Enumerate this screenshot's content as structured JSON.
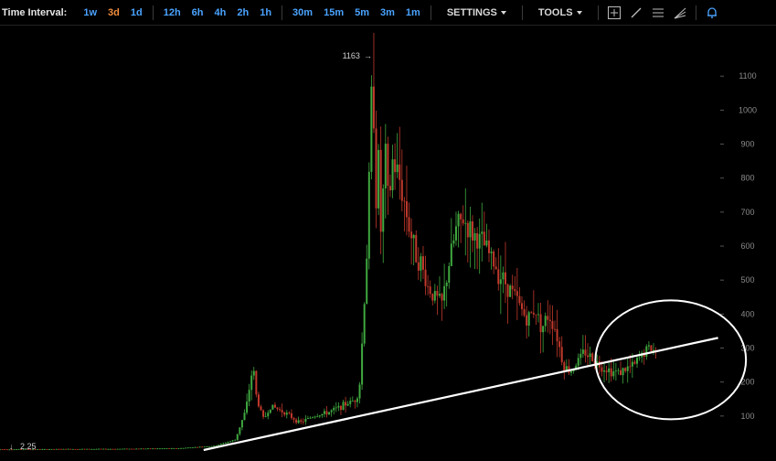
{
  "toolbar": {
    "label": "Time Interval:",
    "intervals": [
      {
        "label": "1w",
        "active": false
      },
      {
        "label": "3d",
        "active": true
      },
      {
        "label": "1d",
        "active": false
      },
      {
        "label": "12h",
        "active": false
      },
      {
        "label": "6h",
        "active": false
      },
      {
        "label": "4h",
        "active": false
      },
      {
        "label": "2h",
        "active": false
      },
      {
        "label": "1h",
        "active": false
      },
      {
        "label": "30m",
        "active": false
      },
      {
        "label": "15m",
        "active": false
      },
      {
        "label": "5m",
        "active": false
      },
      {
        "label": "3m",
        "active": false
      },
      {
        "label": "1m",
        "active": false
      }
    ],
    "settings_label": "SETTINGS",
    "tools_label": "TOOLS",
    "tool_icons": [
      "crosshair-icon",
      "trendline-icon",
      "horizontal-lines-icon",
      "fan-icon",
      "bell-icon"
    ]
  },
  "colors": {
    "interval_link": "#4aa3ff",
    "interval_active": "#f08c3c",
    "candle_up": "#3fa83f",
    "candle_down": "#c0392b",
    "annotation": "#ffffff"
  },
  "chart_data": {
    "type": "candlestick",
    "y_ticks": [
      100,
      200,
      300,
      400,
      500,
      600,
      700,
      800,
      900,
      1000,
      1100
    ],
    "ylim": [
      0,
      1200
    ],
    "high_marker": "1163",
    "low_marker": "2.25",
    "price_series": [
      [
        0,
        2
      ],
      [
        0.05,
        2
      ],
      [
        0.1,
        3
      ],
      [
        0.15,
        3
      ],
      [
        0.2,
        4
      ],
      [
        0.25,
        5
      ],
      [
        0.3,
        12
      ],
      [
        0.33,
        30
      ],
      [
        0.345,
        120
      ],
      [
        0.355,
        250
      ],
      [
        0.36,
        150
      ],
      [
        0.37,
        90
      ],
      [
        0.38,
        130
      ],
      [
        0.4,
        110
      ],
      [
        0.42,
        80
      ],
      [
        0.44,
        100
      ],
      [
        0.46,
        110
      ],
      [
        0.48,
        130
      ],
      [
        0.5,
        150
      ],
      [
        0.505,
        200
      ],
      [
        0.51,
        400
      ],
      [
        0.515,
        600
      ],
      [
        0.52,
        950
      ],
      [
        0.523,
        1163
      ],
      [
        0.527,
        700
      ],
      [
        0.53,
        900
      ],
      [
        0.535,
        600
      ],
      [
        0.54,
        900
      ],
      [
        0.545,
        700
      ],
      [
        0.55,
        850
      ],
      [
        0.56,
        800
      ],
      [
        0.57,
        700
      ],
      [
        0.58,
        600
      ],
      [
        0.59,
        550
      ],
      [
        0.6,
        480
      ],
      [
        0.61,
        450
      ],
      [
        0.62,
        430
      ],
      [
        0.63,
        550
      ],
      [
        0.64,
        650
      ],
      [
        0.65,
        680
      ],
      [
        0.66,
        640
      ],
      [
        0.67,
        620
      ],
      [
        0.68,
        600
      ],
      [
        0.69,
        560
      ],
      [
        0.7,
        520
      ],
      [
        0.72,
        460
      ],
      [
        0.74,
        380
      ],
      [
        0.75,
        420
      ],
      [
        0.76,
        360
      ],
      [
        0.77,
        400
      ],
      [
        0.78,
        350
      ],
      [
        0.79,
        250
      ],
      [
        0.8,
        230
      ],
      [
        0.81,
        260
      ],
      [
        0.82,
        290
      ],
      [
        0.83,
        270
      ],
      [
        0.84,
        250
      ],
      [
        0.85,
        240
      ],
      [
        0.86,
        230
      ],
      [
        0.87,
        230
      ],
      [
        0.88,
        240
      ],
      [
        0.89,
        250
      ],
      [
        0.9,
        280
      ],
      [
        0.91,
        300
      ],
      [
        0.92,
        290
      ]
    ],
    "annotations": [
      {
        "kind": "trendline",
        "from": [
          0.26,
          0
        ],
        "to": [
          0.92,
          330
        ]
      },
      {
        "kind": "ellipse",
        "center": [
          0.86,
          260
        ],
        "rx_frac": 0.097,
        "ry_value": 175
      }
    ]
  }
}
